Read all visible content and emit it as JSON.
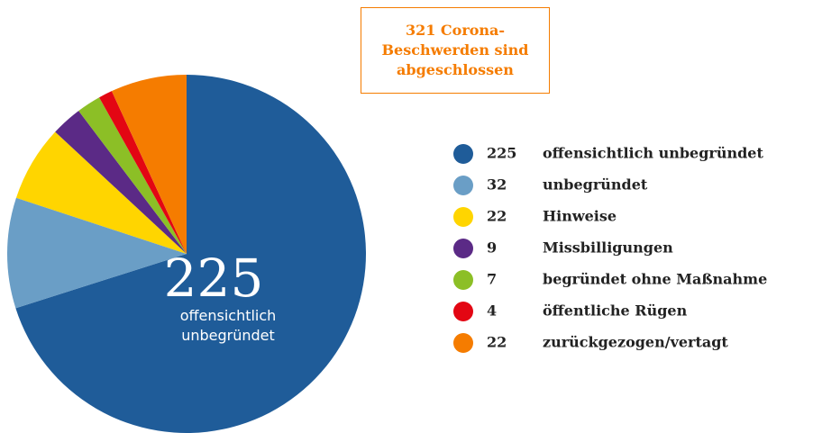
{
  "chart_data": {
    "type": "pie",
    "title": "321 Corona-Beschwerden sind abgeschlossen",
    "categories": [
      "offensichtlich unbegründet",
      "unbegründet",
      "Hinweise",
      "Missbilligungen",
      "begründet ohne Maßnahme",
      "öffentliche Rügen",
      "zurückgezogen/vertagt"
    ],
    "values": [
      225,
      32,
      22,
      9,
      7,
      4,
      22
    ],
    "colors": [
      "#1f5c99",
      "#6a9ec6",
      "#ffd500",
      "#5b2a86",
      "#8cbf26",
      "#e30613",
      "#f57c00"
    ],
    "legend": "right"
  }
}
